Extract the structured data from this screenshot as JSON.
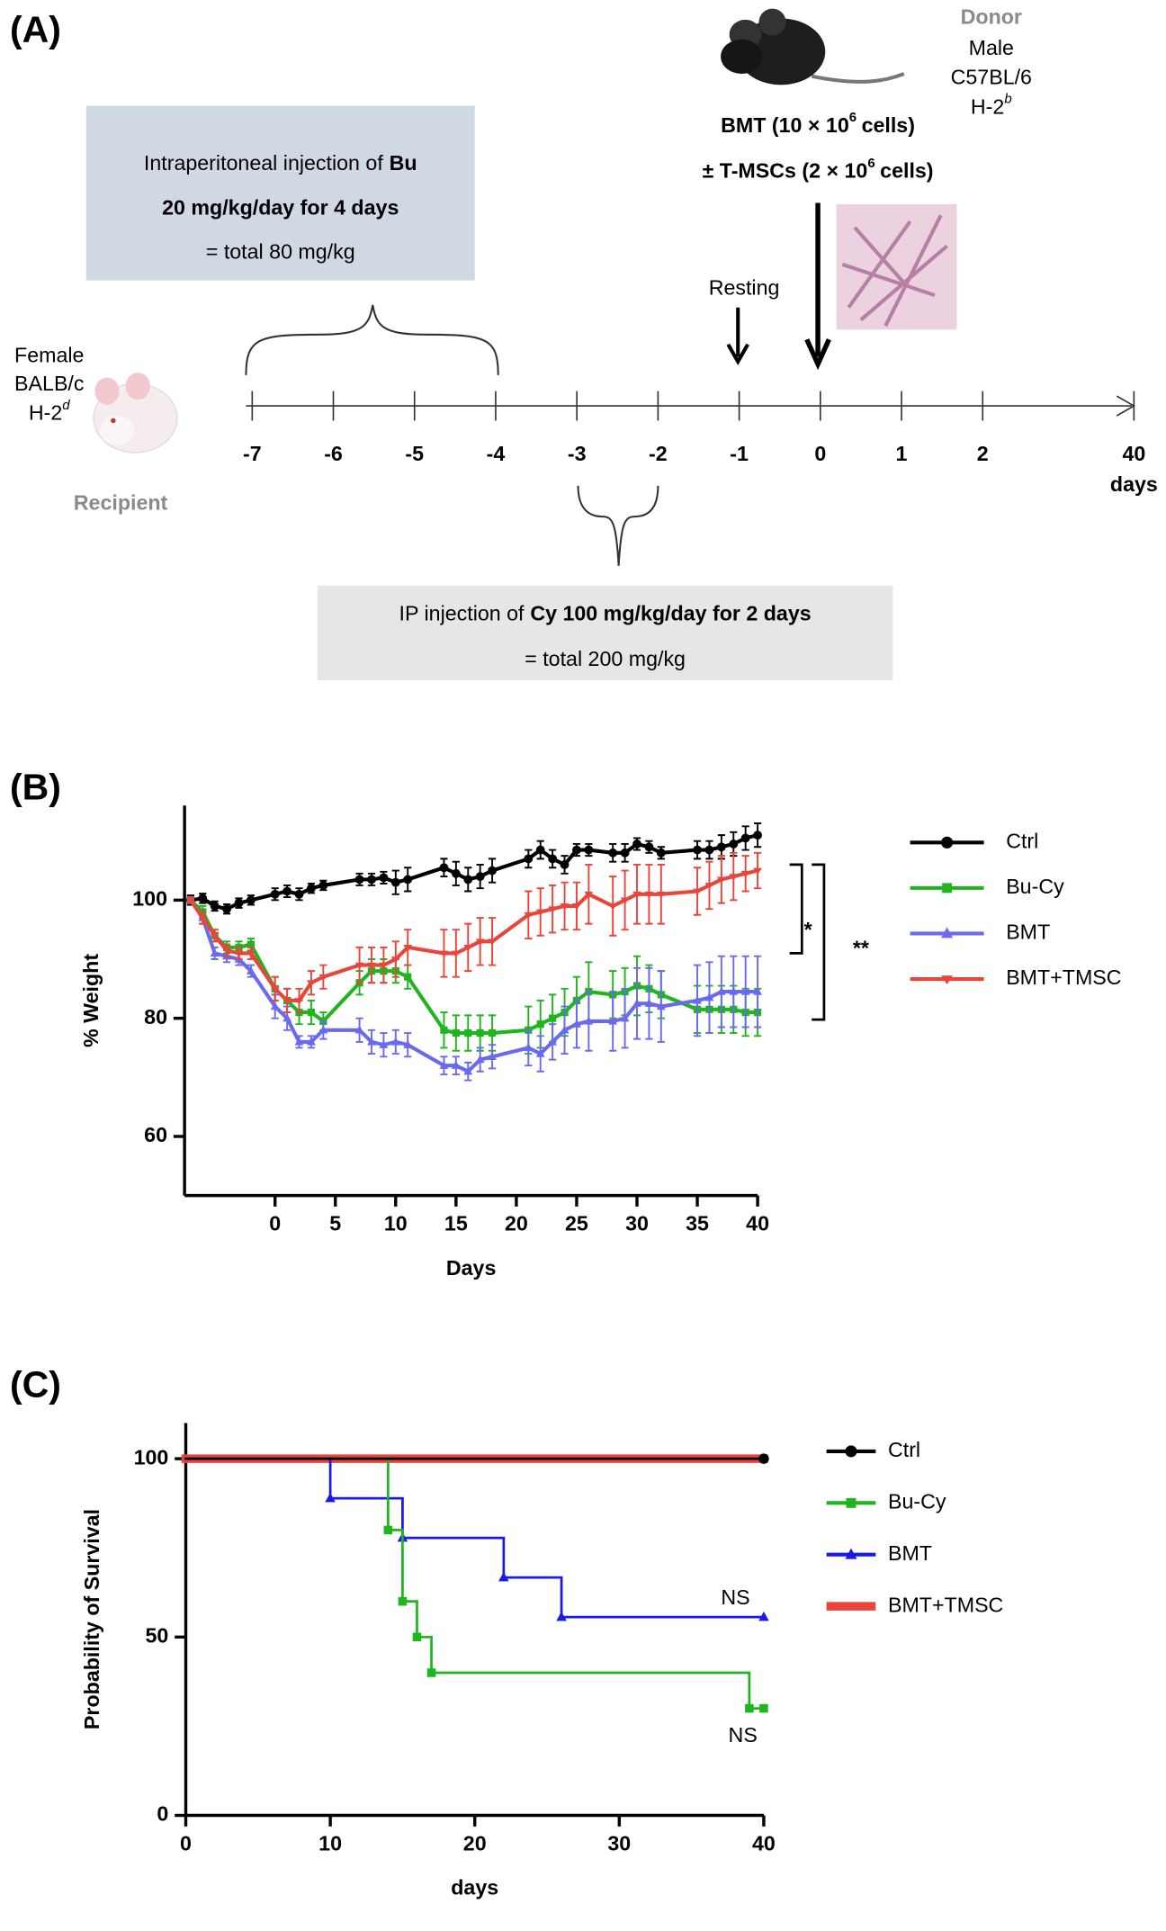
{
  "panel_a": {
    "label": "(A)",
    "donor": {
      "title": "Donor",
      "lines": [
        "Male",
        "C57BL/6"
      ],
      "haplotype": "H-2",
      "haplotype_sup": "b"
    },
    "recipient": {
      "title": "Recipient",
      "lines": [
        "Female",
        "BALB/c"
      ],
      "haplotype": "H-2",
      "haplotype_sup": "d"
    },
    "bmt": {
      "line1": "BMT (10 × 10",
      "line1_sup": "6",
      "line1_end": "cells)",
      "line2": "± T-MSCs (2 × 10",
      "line2_sup": "6",
      "line2_end": "cells)"
    },
    "bu_box": {
      "line1": "Intraperitoneal injection of",
      "line1_bold": "Bu",
      "line2": "20 mg/kg/day for 4 days",
      "line3": "= total 80 mg/kg"
    },
    "cy_box": {
      "line1": "IP injection of",
      "line1_bold": "Cy 100 mg/kg/day for 2 days",
      "line2": "= total 200 mg/kg"
    },
    "resting": "Resting",
    "timeline": {
      "ticks": [
        -7,
        -6,
        -5,
        -4,
        -3,
        -2,
        -1,
        0,
        1,
        2,
        40
      ],
      "unit": "days"
    }
  },
  "chart_data": [
    {
      "type": "line",
      "panel_label": "(B)",
      "x_label": "Days",
      "y_label": "% Weight",
      "x": [
        -7,
        -6,
        -5,
        -4,
        -3,
        -2,
        0,
        1,
        2,
        3,
        4,
        7,
        8,
        9,
        10,
        11,
        14,
        15,
        16,
        17,
        18,
        21,
        22,
        23,
        24,
        25,
        26,
        28,
        29,
        30,
        31,
        32,
        35,
        36,
        37,
        38,
        39,
        40
      ],
      "xlim": [
        -7.5,
        40
      ],
      "xticks": [
        0,
        5,
        10,
        15,
        20,
        25,
        30,
        35,
        40
      ],
      "ylim": [
        50,
        116
      ],
      "yticks": [
        60,
        80,
        100
      ],
      "legend": "right",
      "series": [
        {
          "name": "Ctrl",
          "color": "#000000",
          "marker": "circle",
          "values": [
            100,
            100.3,
            99,
            98.5,
            99.5,
            100,
            101,
            101.5,
            101,
            102,
            102.5,
            103.5,
            103.5,
            103.8,
            103,
            103.5,
            105.5,
            104.5,
            103.5,
            104,
            105,
            107,
            108.5,
            107,
            106,
            108.5,
            108.5,
            108,
            108,
            109.5,
            109,
            108,
            108.5,
            108.5,
            109,
            109.5,
            110.5,
            111
          ],
          "errors": [
            0.8,
            0.8,
            0.8,
            0.8,
            0.8,
            0.8,
            1,
            1,
            1,
            0.8,
            0.8,
            1,
            1,
            1,
            2,
            2,
            1.5,
            2,
            2,
            2,
            2,
            1.5,
            1.5,
            1.5,
            1.5,
            1,
            1,
            1.5,
            1.5,
            1,
            1,
            1,
            1.5,
            1.5,
            2,
            2,
            2,
            2
          ]
        },
        {
          "name": "Bu-Cy",
          "color": "#1fb51f",
          "marker": "square",
          "values": [
            100,
            98,
            94,
            92,
            92,
            92.5,
            85,
            83,
            81,
            81,
            79.5,
            86,
            88,
            88,
            88,
            87,
            78,
            77.5,
            77.5,
            77.5,
            77.5,
            78,
            79,
            80,
            81,
            83,
            84.5,
            84,
            84.5,
            85.5,
            85,
            84,
            81.5,
            81.5,
            81.5,
            81.5,
            81,
            81
          ],
          "errors": [
            0.5,
            1,
            1,
            1,
            1,
            1,
            2,
            2,
            2,
            2,
            1.5,
            2,
            2,
            2,
            2,
            2,
            3,
            3,
            3,
            3,
            3,
            4,
            4,
            4,
            4,
            4,
            5,
            4,
            4,
            5,
            4,
            4,
            4,
            4,
            4,
            4,
            4,
            4
          ]
        },
        {
          "name": "BMT",
          "color": "#6a6af0",
          "marker": "triangle",
          "values": [
            100,
            97,
            91,
            90.5,
            90,
            88,
            82,
            80,
            76,
            76,
            78,
            78,
            76,
            75.5,
            76,
            75.5,
            72,
            72,
            71,
            73,
            73.5,
            75,
            74,
            76,
            78,
            79,
            79.5,
            79.5,
            80,
            82.5,
            82.5,
            82,
            83,
            83.5,
            84.5,
            84.5,
            84.5,
            84.5
          ],
          "errors": [
            0.5,
            1,
            1,
            1,
            1,
            1,
            2,
            2,
            1,
            1,
            1.5,
            2,
            2,
            2,
            2,
            2,
            1.5,
            1.5,
            1.5,
            2,
            2,
            3,
            3,
            3,
            4,
            4,
            5,
            5,
            5,
            6,
            6,
            6,
            6,
            6,
            6,
            6,
            6,
            6
          ]
        },
        {
          "name": "BMT+TMSC",
          "color": "#e8463b",
          "marker": "triangle-down",
          "values": [
            100,
            97,
            94,
            91.5,
            91,
            91,
            85,
            83,
            83,
            86,
            87,
            89,
            89,
            89,
            90,
            92,
            91,
            91,
            92,
            93,
            93,
            97.5,
            98,
            98.5,
            99,
            99,
            101,
            99,
            100,
            101,
            101,
            101,
            101.5,
            102.5,
            103.5,
            104,
            104.5,
            105
          ],
          "errors": [
            0.5,
            1,
            1,
            1,
            1,
            1,
            2,
            2,
            2,
            2,
            2,
            3,
            3,
            3,
            3,
            3,
            4,
            4,
            4,
            4,
            4,
            4,
            4,
            4,
            4,
            4,
            5,
            5,
            5,
            5,
            5,
            5,
            4,
            4,
            4,
            4,
            3,
            3
          ]
        }
      ],
      "annotations": [
        {
          "text": "*"
        },
        {
          "text": "**"
        }
      ]
    },
    {
      "type": "step",
      "panel_label": "(C)",
      "x_label": "days",
      "y_label": "Probability of Survival",
      "xlim": [
        0,
        40
      ],
      "xticks": [
        0,
        10,
        20,
        30,
        40
      ],
      "ylim": [
        0,
        110
      ],
      "yticks": [
        0,
        50,
        100
      ],
      "legend": "right",
      "series": [
        {
          "name": "Ctrl",
          "color": "#000000",
          "marker": "circle",
          "width": 2,
          "x": [
            0,
            40
          ],
          "values": [
            100,
            100
          ]
        },
        {
          "name": "Bu-Cy",
          "color": "#1fb51f",
          "marker": "square",
          "width": 2,
          "x": [
            0,
            14,
            15,
            16,
            17,
            39,
            40
          ],
          "values": [
            100,
            80,
            60,
            50,
            40,
            30,
            30
          ]
        },
        {
          "name": "BMT",
          "color": "#1a1ae6",
          "marker": "triangle",
          "width": 2,
          "x": [
            0,
            10,
            15,
            22,
            26,
            40
          ],
          "values": [
            100,
            88.9,
            77.8,
            66.7,
            55.6,
            55.6
          ]
        },
        {
          "name": "BMT+TMSC",
          "color": "#e8463b",
          "marker": "none",
          "width": 7,
          "x": [
            0,
            40
          ],
          "values": [
            100,
            100
          ]
        }
      ],
      "annotations": [
        {
          "text": "NS"
        },
        {
          "text": "NS"
        }
      ]
    }
  ]
}
